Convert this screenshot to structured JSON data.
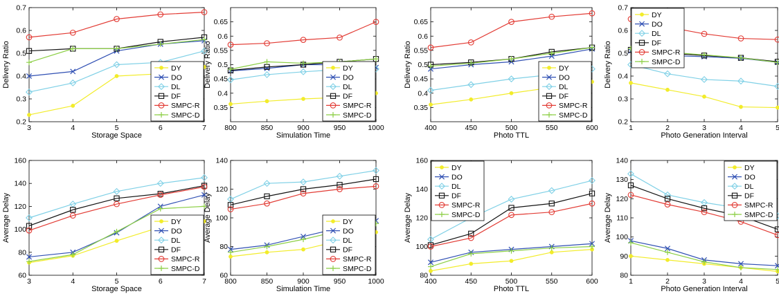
{
  "colors": {
    "DY": "#f2ec2a",
    "DO": "#2f4fb3",
    "DL": "#7fd0e6",
    "DF": "#111111",
    "SMPC-R": "#e23b34",
    "SMPC-D": "#8ccf45"
  },
  "markers": {
    "DY": "dot",
    "DO": "x",
    "DL": "diamond",
    "DF": "square",
    "SMPC-R": "circle",
    "SMPC-D": "plus"
  },
  "chart_data": [
    {
      "type": "line",
      "xlabel": "Storage Space",
      "ylabel": "Delivery Ratio",
      "x": [
        3,
        4,
        5,
        6,
        7
      ],
      "xlim": [
        3,
        7
      ],
      "ylim": [
        0.2,
        0.7
      ],
      "xticks": [
        "3",
        "4",
        "5",
        "6",
        "7"
      ],
      "yticks": [
        "0.2",
        "0.3",
        "0.4",
        "0.5",
        "0.6",
        "0.7"
      ],
      "legend": "bottom-right",
      "series": [
        {
          "name": "DY",
          "values": [
            0.23,
            0.27,
            0.4,
            0.41,
            0.44
          ]
        },
        {
          "name": "DO",
          "values": [
            0.4,
            0.42,
            0.51,
            0.54,
            0.555
          ]
        },
        {
          "name": "DL",
          "values": [
            0.33,
            0.37,
            0.45,
            0.46,
            0.51
          ]
        },
        {
          "name": "DF",
          "values": [
            0.51,
            0.52,
            0.52,
            0.55,
            0.57
          ]
        },
        {
          "name": "SMPC-R",
          "values": [
            0.57,
            0.59,
            0.65,
            0.67,
            0.68
          ]
        },
        {
          "name": "SMPC-D",
          "values": [
            0.46,
            0.52,
            0.52,
            0.54,
            0.56
          ]
        }
      ]
    },
    {
      "type": "line",
      "xlabel": "Simulation Time",
      "ylabel": "Delivery Ratio",
      "x": [
        800,
        850,
        900,
        950,
        1000
      ],
      "xlim": [
        800,
        1000
      ],
      "ylim": [
        0.3,
        0.7
      ],
      "xticks": [
        "800",
        "850",
        "900",
        "950",
        "1000"
      ],
      "yticks": [
        "0.35",
        "0.4",
        "0.45",
        "0.5",
        "0.55",
        "0.6",
        "0.65"
      ],
      "legend": "bottom-right",
      "series": [
        {
          "name": "DY",
          "values": [
            0.362,
            0.372,
            0.38,
            0.385,
            0.4
          ]
        },
        {
          "name": "DO",
          "values": [
            0.478,
            0.487,
            0.5,
            0.5,
            0.49
          ]
        },
        {
          "name": "DL",
          "values": [
            0.447,
            0.465,
            0.475,
            0.483,
            0.485
          ]
        },
        {
          "name": "DF",
          "values": [
            0.48,
            0.492,
            0.5,
            0.51,
            0.52
          ]
        },
        {
          "name": "SMPC-R",
          "values": [
            0.57,
            0.575,
            0.587,
            0.595,
            0.65
          ]
        },
        {
          "name": "SMPC-D",
          "values": [
            0.484,
            0.51,
            0.505,
            0.51,
            0.52
          ]
        }
      ]
    },
    {
      "type": "line",
      "xlabel": "Photo TTL",
      "ylabel": "Delivery Ratio",
      "x": [
        400,
        450,
        500,
        550,
        600
      ],
      "xlim": [
        400,
        600
      ],
      "ylim": [
        0.3,
        0.7
      ],
      "xticks": [
        "400",
        "450",
        "500",
        "550",
        "600"
      ],
      "yticks": [
        "0.35",
        "0.4",
        "0.45",
        "0.5",
        "0.55",
        "0.6",
        "0.65"
      ],
      "legend": "bottom-right",
      "series": [
        {
          "name": "DY",
          "values": [
            0.36,
            0.378,
            0.4,
            0.42,
            0.44
          ]
        },
        {
          "name": "DO",
          "values": [
            0.485,
            0.5,
            0.51,
            0.53,
            0.555
          ]
        },
        {
          "name": "DL",
          "values": [
            0.41,
            0.43,
            0.45,
            0.465,
            0.485
          ]
        },
        {
          "name": "DF",
          "values": [
            0.5,
            0.508,
            0.52,
            0.545,
            0.56
          ]
        },
        {
          "name": "SMPC-R",
          "values": [
            0.56,
            0.578,
            0.65,
            0.668,
            0.68
          ]
        },
        {
          "name": "SMPC-D",
          "values": [
            0.495,
            0.505,
            0.52,
            0.54,
            0.56
          ]
        }
      ]
    },
    {
      "type": "line",
      "xlabel": "Photo Generation Interval",
      "ylabel": "Delivery Ratio",
      "x": [
        1,
        2,
        3,
        4,
        5
      ],
      "xlim": [
        1,
        5
      ],
      "ylim": [
        0.2,
        0.7
      ],
      "xticks": [
        "1",
        "2",
        "3",
        "4",
        "5"
      ],
      "yticks": [
        "0.2",
        "0.3",
        "0.4",
        "0.5",
        "0.6",
        "0.7"
      ],
      "legend": "top-left",
      "series": [
        {
          "name": "DY",
          "values": [
            0.37,
            0.34,
            0.31,
            0.265,
            0.262
          ]
        },
        {
          "name": "DO",
          "values": [
            0.51,
            0.49,
            0.485,
            0.478,
            0.46
          ]
        },
        {
          "name": "DL",
          "values": [
            0.45,
            0.41,
            0.385,
            0.378,
            0.355
          ]
        },
        {
          "name": "DF",
          "values": [
            0.515,
            0.5,
            0.49,
            0.48,
            0.463
          ]
        },
        {
          "name": "SMPC-R",
          "values": [
            0.65,
            0.615,
            0.585,
            0.565,
            0.56
          ]
        },
        {
          "name": "SMPC-D",
          "values": [
            0.52,
            0.505,
            0.493,
            0.48,
            0.46
          ]
        }
      ]
    },
    {
      "type": "line",
      "xlabel": "Storage Space",
      "ylabel": "Average Delay",
      "x": [
        3,
        4,
        5,
        6,
        7
      ],
      "xlim": [
        3,
        7
      ],
      "ylim": [
        60,
        160
      ],
      "xticks": [
        "3",
        "4",
        "5",
        "6",
        "7"
      ],
      "yticks": [
        "60",
        "80",
        "100",
        "120",
        "140",
        "160"
      ],
      "legend": "bottom-right",
      "series": [
        {
          "name": "DY",
          "values": [
            71,
            77,
            90,
            102,
            107
          ]
        },
        {
          "name": "DO",
          "values": [
            76,
            80,
            97,
            120,
            130
          ]
        },
        {
          "name": "DL",
          "values": [
            110,
            122,
            133,
            140,
            145
          ]
        },
        {
          "name": "DF",
          "values": [
            103,
            117,
            127,
            131,
            138
          ]
        },
        {
          "name": "SMPC-R",
          "values": [
            99,
            112,
            122,
            130,
            137
          ]
        },
        {
          "name": "SMPC-D",
          "values": [
            72,
            78,
            98,
            118,
            120
          ]
        }
      ]
    },
    {
      "type": "line",
      "xlabel": "Simulation Time",
      "ylabel": "Average Delay",
      "x": [
        800,
        850,
        900,
        950,
        1000
      ],
      "xlim": [
        800,
        1000
      ],
      "ylim": [
        60,
        140
      ],
      "xticks": [
        "800",
        "850",
        "900",
        "950",
        "1000"
      ],
      "yticks": [
        "60",
        "80",
        "100",
        "120",
        "140"
      ],
      "legend": "bottom-right",
      "series": [
        {
          "name": "DY",
          "values": [
            73,
            76,
            78,
            84,
            90
          ]
        },
        {
          "name": "DO",
          "values": [
            78,
            81,
            87,
            93,
            98
          ]
        },
        {
          "name": "DL",
          "values": [
            113,
            124,
            125,
            129,
            133
          ]
        },
        {
          "name": "DF",
          "values": [
            109,
            115,
            120,
            123,
            127
          ]
        },
        {
          "name": "SMPC-R",
          "values": [
            106,
            110,
            117,
            120,
            122
          ]
        },
        {
          "name": "SMPC-D",
          "values": [
            76,
            80,
            85,
            91,
            96
          ]
        }
      ]
    },
    {
      "type": "line",
      "xlabel": "Photo TTL",
      "ylabel": "Average Delay",
      "x": [
        400,
        450,
        500,
        550,
        600
      ],
      "xlim": [
        400,
        600
      ],
      "ylim": [
        80,
        160
      ],
      "xticks": [
        "400",
        "450",
        "500",
        "550",
        "600"
      ],
      "yticks": [
        "80",
        "100",
        "120",
        "140",
        "160"
      ],
      "legend": "top-left",
      "series": [
        {
          "name": "DY",
          "values": [
            83,
            88,
            90,
            96,
            98
          ]
        },
        {
          "name": "DO",
          "values": [
            89,
            96,
            98,
            100,
            102
          ]
        },
        {
          "name": "DL",
          "values": [
            105,
            120,
            133,
            139,
            146
          ]
        },
        {
          "name": "DF",
          "values": [
            101,
            109,
            127,
            130,
            137
          ]
        },
        {
          "name": "SMPC-R",
          "values": [
            100,
            106,
            122,
            124,
            130
          ]
        },
        {
          "name": "SMPC-D",
          "values": [
            86,
            95,
            97,
            99,
            100
          ]
        }
      ]
    },
    {
      "type": "line",
      "xlabel": "Photo Generation Interval",
      "ylabel": "Average Delay",
      "x": [
        1,
        2,
        3,
        4,
        5
      ],
      "xlim": [
        1,
        5
      ],
      "ylim": [
        80,
        140
      ],
      "xticks": [
        "1",
        "2",
        "3",
        "4",
        "5"
      ],
      "yticks": [
        "80",
        "90",
        "100",
        "110",
        "120",
        "130",
        "140"
      ],
      "legend": "top-right",
      "series": [
        {
          "name": "DY",
          "values": [
            90,
            88,
            86,
            84,
            82
          ]
        },
        {
          "name": "DO",
          "values": [
            98,
            94,
            88,
            86,
            85
          ]
        },
        {
          "name": "DL",
          "values": [
            133,
            122,
            118,
            115,
            111
          ]
        },
        {
          "name": "DF",
          "values": [
            127,
            120,
            115,
            111,
            104
          ]
        },
        {
          "name": "SMPC-R",
          "values": [
            122,
            117,
            113,
            108,
            101
          ]
        },
        {
          "name": "SMPC-D",
          "values": [
            97,
            92,
            87,
            84,
            83
          ]
        }
      ]
    }
  ]
}
